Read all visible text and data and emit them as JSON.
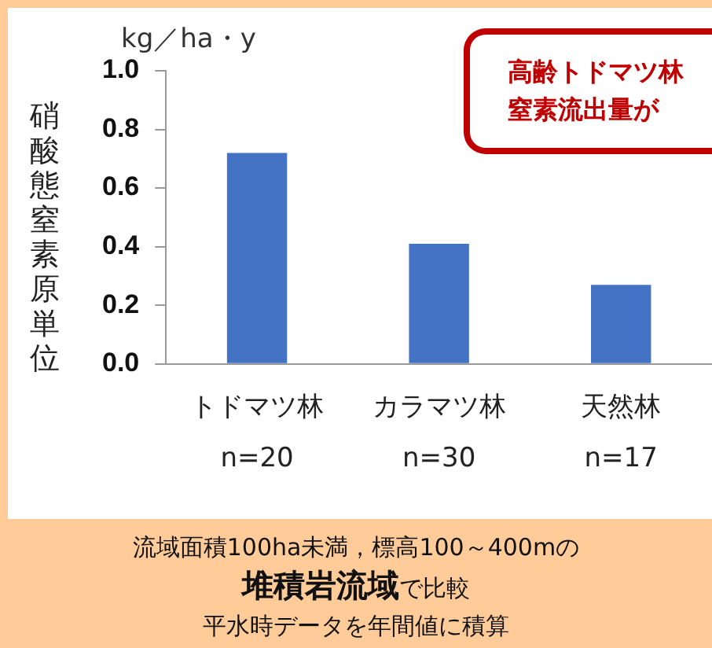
{
  "chart_data": {
    "type": "bar",
    "ylabel": "硝酸態窒素原単位",
    "categories": [
      "トドマツ林\nn=20",
      "カラマツ林\nn=30",
      "天然林\nn=17"
    ],
    "values": [
      0.72,
      0.41,
      0.27
    ],
    "color": "#4472c4",
    "ylim": [
      0,
      1
    ],
    "yticks": [
      {
        "value": 0,
        "label": "0.0"
      },
      {
        "value": 0.2,
        "label": "0.2"
      },
      {
        "value": 0.4,
        "label": "0.4"
      },
      {
        "value": 0.6,
        "label": "0.6"
      },
      {
        "value": 0.8,
        "label": "0.8"
      },
      {
        "value": 1,
        "label": "1.0"
      }
    ],
    "grid": false,
    "legend": false,
    "annotations": [
      "kg／ha・y",
      "高齢トドマツ林",
      "窒素流出量が",
      "流域面積100ha未満，標高100～400mの",
      "堆積岩流域",
      "で比較",
      "平水時データを年間値に積算"
    ]
  }
}
